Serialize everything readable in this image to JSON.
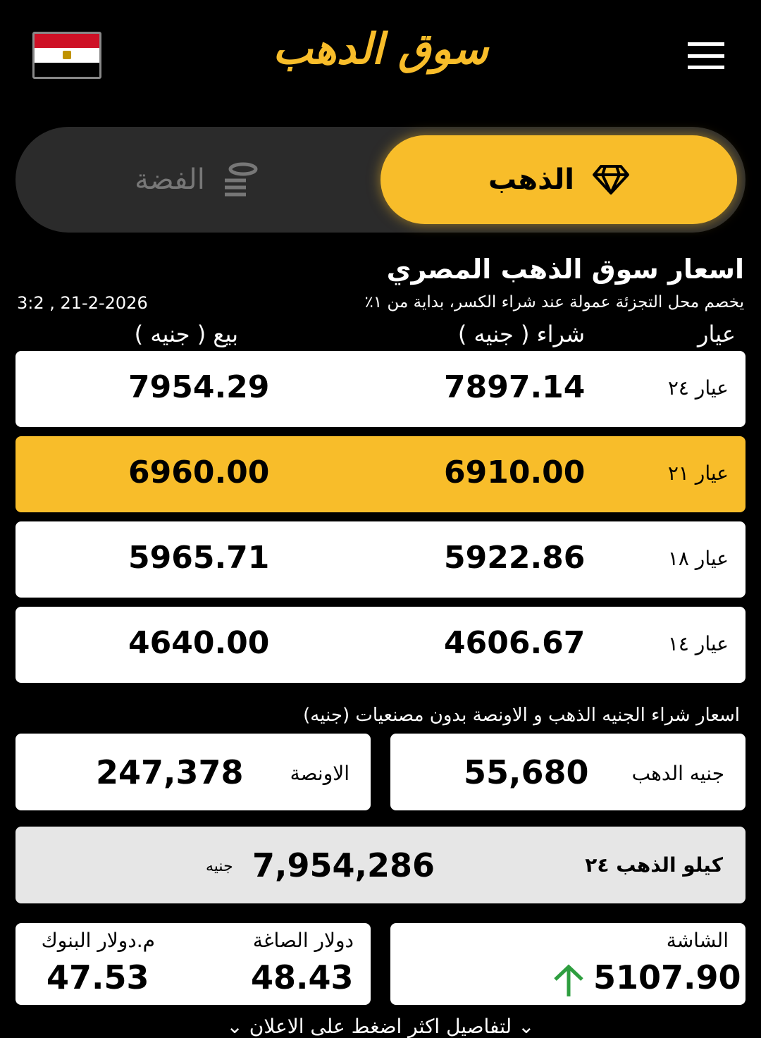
{
  "header": {
    "logo_text": "سوق الدهب",
    "flag_colors": [
      "#ce1126",
      "#ffffff",
      "#000000"
    ]
  },
  "tabs": [
    {
      "label": "الذهب",
      "icon": "diamond-icon",
      "active": true
    },
    {
      "label": "الفضة",
      "icon": "coins-icon",
      "active": false
    }
  ],
  "section": {
    "title": "اسعار سوق الذهب المصري",
    "subtitle": "يخصم محل التجزئة عمولة عند شراء الكسر، بداية من ١٪",
    "datetime": "3:2 , 21-2-2026"
  },
  "columns": {
    "karat": "عيار",
    "buy": "شراء ( جنيه )",
    "sell": "بيع ( جنيه )"
  },
  "rows": [
    {
      "karat": "عيار ٢٤",
      "buy": "7897.14",
      "sell": "7954.29"
    },
    {
      "karat": "عيار ٢١",
      "buy": "6910.00",
      "sell": "6960.00"
    },
    {
      "karat": "عيار ١٨",
      "buy": "5922.86",
      "sell": "5965.71"
    },
    {
      "karat": "عيار ١٤",
      "buy": "4606.67",
      "sell": "4640.00"
    }
  ],
  "coins": {
    "title": "اسعار شراء الجنيه الذهب و الاونصة بدون مصنعيات (جنيه)",
    "pound_label": "جنيه الدهب",
    "pound_value": "55,680",
    "ounce_label": "الاونصة",
    "ounce_value": "247,378"
  },
  "kilo": {
    "label": "كيلو الذهب ٢٤",
    "value": "7,954,286",
    "unit": "جنيه"
  },
  "screen": {
    "label": "الشاشة",
    "value": "5107.90",
    "trend": "up",
    "trend_color": "#2e9e3f"
  },
  "dollar": {
    "goldsmith_label": "دولار الصاغة",
    "goldsmith_value": "48.43",
    "bank_label": "م.دولار البنوك",
    "bank_value": "47.53"
  },
  "footer": {
    "text": "لتفاصيل اكثر اضغط على الاعلان"
  },
  "colors": {
    "accent": "#f8bd2a"
  }
}
